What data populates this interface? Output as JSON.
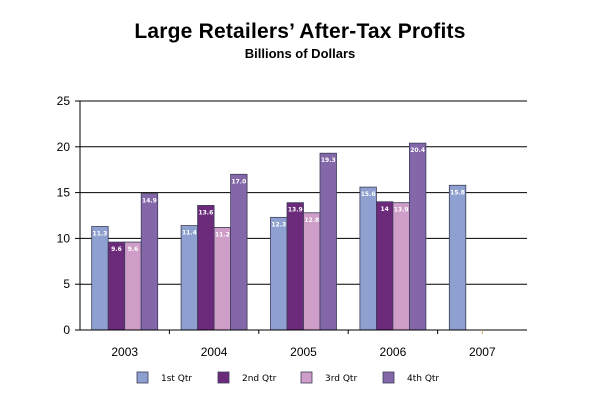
{
  "chart_data": {
    "type": "bar",
    "title": "Large Retailers’ After-Tax Profits",
    "subtitle": "Billions of Dollars",
    "xlabel": "",
    "ylabel": "",
    "ylim": [
      0,
      25
    ],
    "yticks": [
      0,
      5,
      10,
      15,
      20,
      25
    ],
    "grid": true,
    "legend_position": "bottom",
    "categories": [
      "2003",
      "2004",
      "2005",
      "2006",
      "2007"
    ],
    "series": [
      {
        "name": "1st Qtr",
        "color": "#8EA0CF",
        "values": [
          11.3,
          11.4,
          12.3,
          15.6,
          15.8
        ],
        "labels": [
          "11.3",
          "11.4",
          "12.3",
          "15.6",
          "15.8"
        ]
      },
      {
        "name": "2nd Qtr",
        "color": "#6B2A7A",
        "values": [
          9.6,
          13.6,
          13.9,
          14.0,
          null
        ],
        "labels": [
          "9.6",
          "13.6",
          "13.9",
          "14",
          ""
        ]
      },
      {
        "name": "3rd Qtr",
        "color": "#CE9DC8",
        "values": [
          9.6,
          11.2,
          12.8,
          13.9,
          null
        ],
        "labels": [
          "9.6",
          "11.2",
          "12.8",
          "13.9",
          ""
        ]
      },
      {
        "name": "4th Qtr",
        "color": "#8367A8",
        "values": [
          14.9,
          17.0,
          19.3,
          20.4,
          null
        ],
        "labels": [
          "14.9",
          "17.0",
          "19.3",
          "20.4",
          ""
        ]
      }
    ]
  }
}
